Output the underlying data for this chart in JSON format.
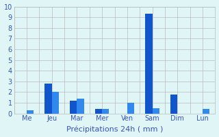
{
  "categories": [
    "Me",
    "Jeu",
    "Mar",
    "Mer",
    "Ven",
    "Sam",
    "Dim",
    "Lun"
  ],
  "values1": [
    0.0,
    2.8,
    1.2,
    0.4,
    0.0,
    9.3,
    1.8,
    0.0
  ],
  "values2": [
    0.3,
    2.0,
    1.4,
    0.4,
    1.0,
    0.5,
    0.0,
    0.4
  ],
  "bar_color1": "#1155cc",
  "bar_color2": "#3388ee",
  "background_color": "#e0f5f5",
  "grid_color": "#bbbbbb",
  "text_color": "#3355bb",
  "xlabel": "Précipitations 24h ( mm )",
  "ylim": [
    0,
    10
  ],
  "yticks": [
    0,
    1,
    2,
    3,
    4,
    5,
    6,
    7,
    8,
    9,
    10
  ],
  "bar_width": 0.28,
  "xlabel_fontsize": 8,
  "tick_fontsize": 7
}
